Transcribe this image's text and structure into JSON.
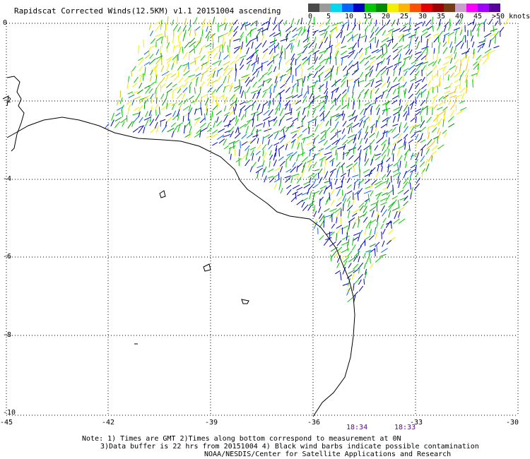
{
  "title": "Rapidscat Corrected Winds(12.5KM) v1.1 20151004 ascending",
  "legend": {
    "colors": [
      "#4a4a4a",
      "#9a9a9a",
      "#00d8f0",
      "#0064ff",
      "#0000c8",
      "#00c800",
      "#008c00",
      "#f0f000",
      "#ffb400",
      "#ff5000",
      "#e60000",
      "#a00000",
      "#783c14",
      "#c8a0c8",
      "#ff00ff",
      "#a000ff",
      "#5a00a0"
    ],
    "labels": [
      "0",
      "5",
      "10",
      "15",
      "20",
      "25",
      "30",
      "35",
      "40",
      "45",
      ">50 knots"
    ]
  },
  "y_axis": {
    "ticks": [
      "0",
      "-2",
      "-4",
      "-6",
      "-8",
      "-10"
    ]
  },
  "x_axis": {
    "ticks": [
      "-45",
      "-42",
      "-39",
      "-36",
      "-33",
      "-30"
    ]
  },
  "times": [
    {
      "text": "18:34",
      "color": "#5a00a0"
    },
    {
      "text": "18:33",
      "color": "#5a00a0"
    }
  ],
  "notes": [
    "Note: 1) Times are GMT 2)Times along bottom correspond to measurement at 0N",
    "3)Data buffer is 22 hrs from 20151004 4) Black wind barbs indicate possible contamination",
    "NOAA/NESDIS/Center for Satellite Applications and Research"
  ]
}
